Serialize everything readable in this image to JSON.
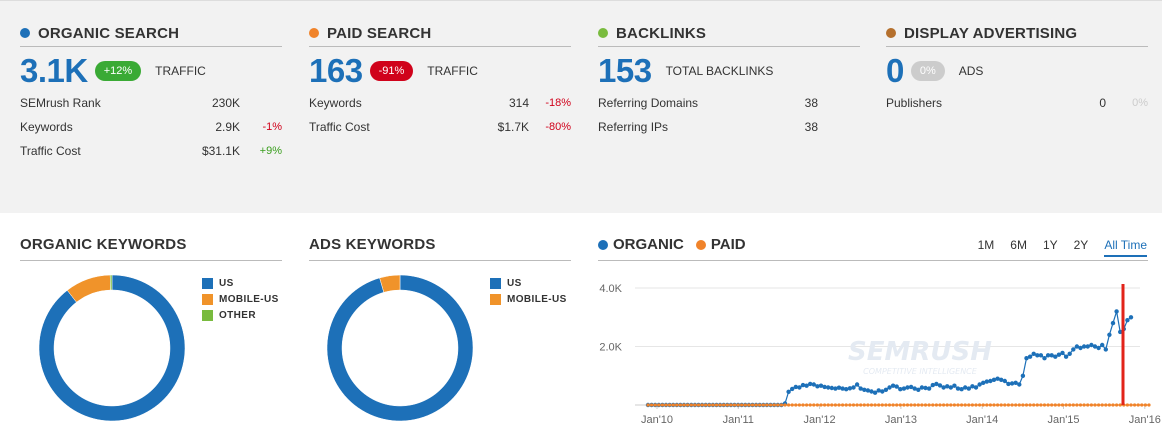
{
  "colors": {
    "blue": "#1d70b8",
    "orange": "#f0832a",
    "green": "#79bb3e",
    "brown": "#b5702d",
    "red": "#e2231a",
    "badge_green": "#3aaa35",
    "badge_red": "#d0021b",
    "badge_grey": "#cccccc"
  },
  "cards": [
    {
      "title": "ORGANIC SEARCH",
      "dot": "#1d70b8",
      "big": "3.1K",
      "badge": "+12%",
      "badge_color": "#3aaa35",
      "big_label": "TRAFFIC",
      "rows": [
        {
          "label": "SEMrush Rank",
          "value": "230K",
          "change": ""
        },
        {
          "label": "Keywords",
          "value": "2.9K",
          "change": "-1%"
        },
        {
          "label": "Traffic Cost",
          "value": "$31.1K",
          "change": "+9%"
        }
      ]
    },
    {
      "title": "PAID SEARCH",
      "dot": "#f0832a",
      "big": "163",
      "badge": "-91%",
      "badge_color": "#d0021b",
      "big_label": "TRAFFIC",
      "rows": [
        {
          "label": "Keywords",
          "value": "314",
          "change": "-18%"
        },
        {
          "label": "Traffic Cost",
          "value": "$1.7K",
          "change": "-80%"
        }
      ]
    },
    {
      "title": "BACKLINKS",
      "dot": "#79bb3e",
      "big": "153",
      "badge": "",
      "badge_color": "",
      "big_label": "TOTAL BACKLINKS",
      "rows": [
        {
          "label": "Referring Domains",
          "value": "38",
          "change": ""
        },
        {
          "label": "Referring IPs",
          "value": "38",
          "change": ""
        }
      ]
    },
    {
      "title": "DISPLAY ADVERTISING",
      "dot": "#b5702d",
      "big": "0",
      "badge": "0%",
      "badge_color": "#cccccc",
      "big_label": "ADS",
      "rows": [
        {
          "label": "Publishers",
          "value": "0",
          "change": "0%"
        }
      ]
    }
  ],
  "organic_keywords": {
    "title": "ORGANIC KEYWORDS",
    "legend": [
      "US",
      "MOBILE-US",
      "OTHER"
    ],
    "legend_colors": [
      "#1d70b8",
      "#f0932a",
      "#79bb3e"
    ]
  },
  "ads_keywords": {
    "title": "ADS KEYWORDS",
    "legend": [
      "US",
      "MOBILE-US"
    ],
    "legend_colors": [
      "#1d70b8",
      "#f0932a"
    ]
  },
  "trend": {
    "legend": [
      "ORGANIC",
      "PAID"
    ],
    "periods": [
      "1M",
      "6M",
      "1Y",
      "2Y",
      "All Time"
    ],
    "active_period": "All Time",
    "watermark": "SEMRUSH",
    "watermark_sub": "COMPETITIVE INTELLIGENCE"
  },
  "chart_data": [
    {
      "type": "pie",
      "title": "ORGANIC KEYWORDS",
      "categories": [
        "US",
        "MOBILE-US",
        "OTHER"
      ],
      "values": [
        89.5,
        10.1,
        0.4
      ]
    },
    {
      "type": "pie",
      "title": "ADS KEYWORDS",
      "categories": [
        "US",
        "MOBILE-US"
      ],
      "values": [
        95.5,
        4.5
      ]
    },
    {
      "type": "line",
      "x_ticks": [
        "Jan'10",
        "Jan'11",
        "Jan'12",
        "Jan'13",
        "Jan'14",
        "Jan'15",
        "Jan'16"
      ],
      "y_ticks": [
        "4.0K",
        "2.0K"
      ],
      "ylim": [
        0,
        4000
      ],
      "series": [
        {
          "name": "ORGANIC",
          "color": "#1d70b8",
          "values": [
            0,
            0,
            0,
            0,
            0,
            0,
            0,
            0,
            0,
            0,
            0,
            0,
            0,
            0,
            0,
            0,
            0,
            0,
            0,
            0,
            0,
            0,
            0,
            0,
            0,
            0,
            0,
            0,
            0,
            0,
            0,
            0,
            0,
            0,
            0,
            0,
            0,
            0,
            50,
            450,
            550,
            620,
            600,
            680,
            660,
            720,
            700,
            640,
            660,
            620,
            600,
            580,
            560,
            590,
            560,
            540,
            570,
            600,
            700,
            560,
            520,
            500,
            460,
            420,
            500,
            460,
            520,
            600,
            660,
            630,
            540,
            560,
            600,
            620,
            560,
            520,
            600,
            580,
            560,
            680,
            720,
            670,
            600,
            640,
            600,
            660,
            560,
            540,
            600,
            560,
            640,
            600,
            700,
            760,
            800,
            820,
            860,
            900,
            860,
            820,
            720,
            740,
            760,
            700,
            1000,
            1600,
            1650,
            1750,
            1700,
            1700,
            1600,
            1700,
            1700,
            1650,
            1720,
            1780,
            1650,
            1750,
            1900,
            2000,
            1950,
            2000,
            2000,
            2050,
            2000,
            1950,
            2050,
            1900,
            2400,
            2800,
            3200,
            2500,
            2600,
            2900,
            3000
          ]
        },
        {
          "name": "PAID",
          "color": "#f0832a",
          "values": [
            0,
            0,
            0,
            0,
            0,
            0,
            0,
            0,
            0,
            0,
            0,
            0,
            0,
            0,
            0,
            0,
            0,
            0,
            0,
            0,
            0,
            0,
            0,
            0,
            0,
            0,
            0,
            0,
            0,
            0,
            0,
            0,
            0,
            0,
            0,
            0,
            0,
            0,
            0,
            0,
            0,
            0,
            0,
            0,
            0,
            0,
            0,
            0,
            0,
            0,
            0,
            0,
            0,
            0,
            0,
            0,
            0,
            0,
            0,
            0,
            0,
            0,
            0,
            0,
            0,
            0,
            0,
            0,
            0,
            0,
            0,
            0,
            0,
            0,
            0,
            0,
            0,
            0,
            0,
            0,
            0,
            0,
            0,
            0,
            0,
            0,
            0,
            0,
            0,
            0,
            0,
            0,
            0,
            0,
            0,
            0,
            0,
            0,
            0,
            0,
            0,
            0,
            0,
            0,
            0,
            0,
            0,
            0,
            0,
            0,
            0,
            0,
            0,
            0,
            0,
            0,
            0,
            0,
            0,
            0,
            0,
            0,
            0,
            0,
            0,
            0,
            0,
            0,
            0,
            0,
            0,
            0,
            0,
            0,
            0,
            0,
            0,
            0,
            0,
            0
          ]
        }
      ]
    }
  ]
}
